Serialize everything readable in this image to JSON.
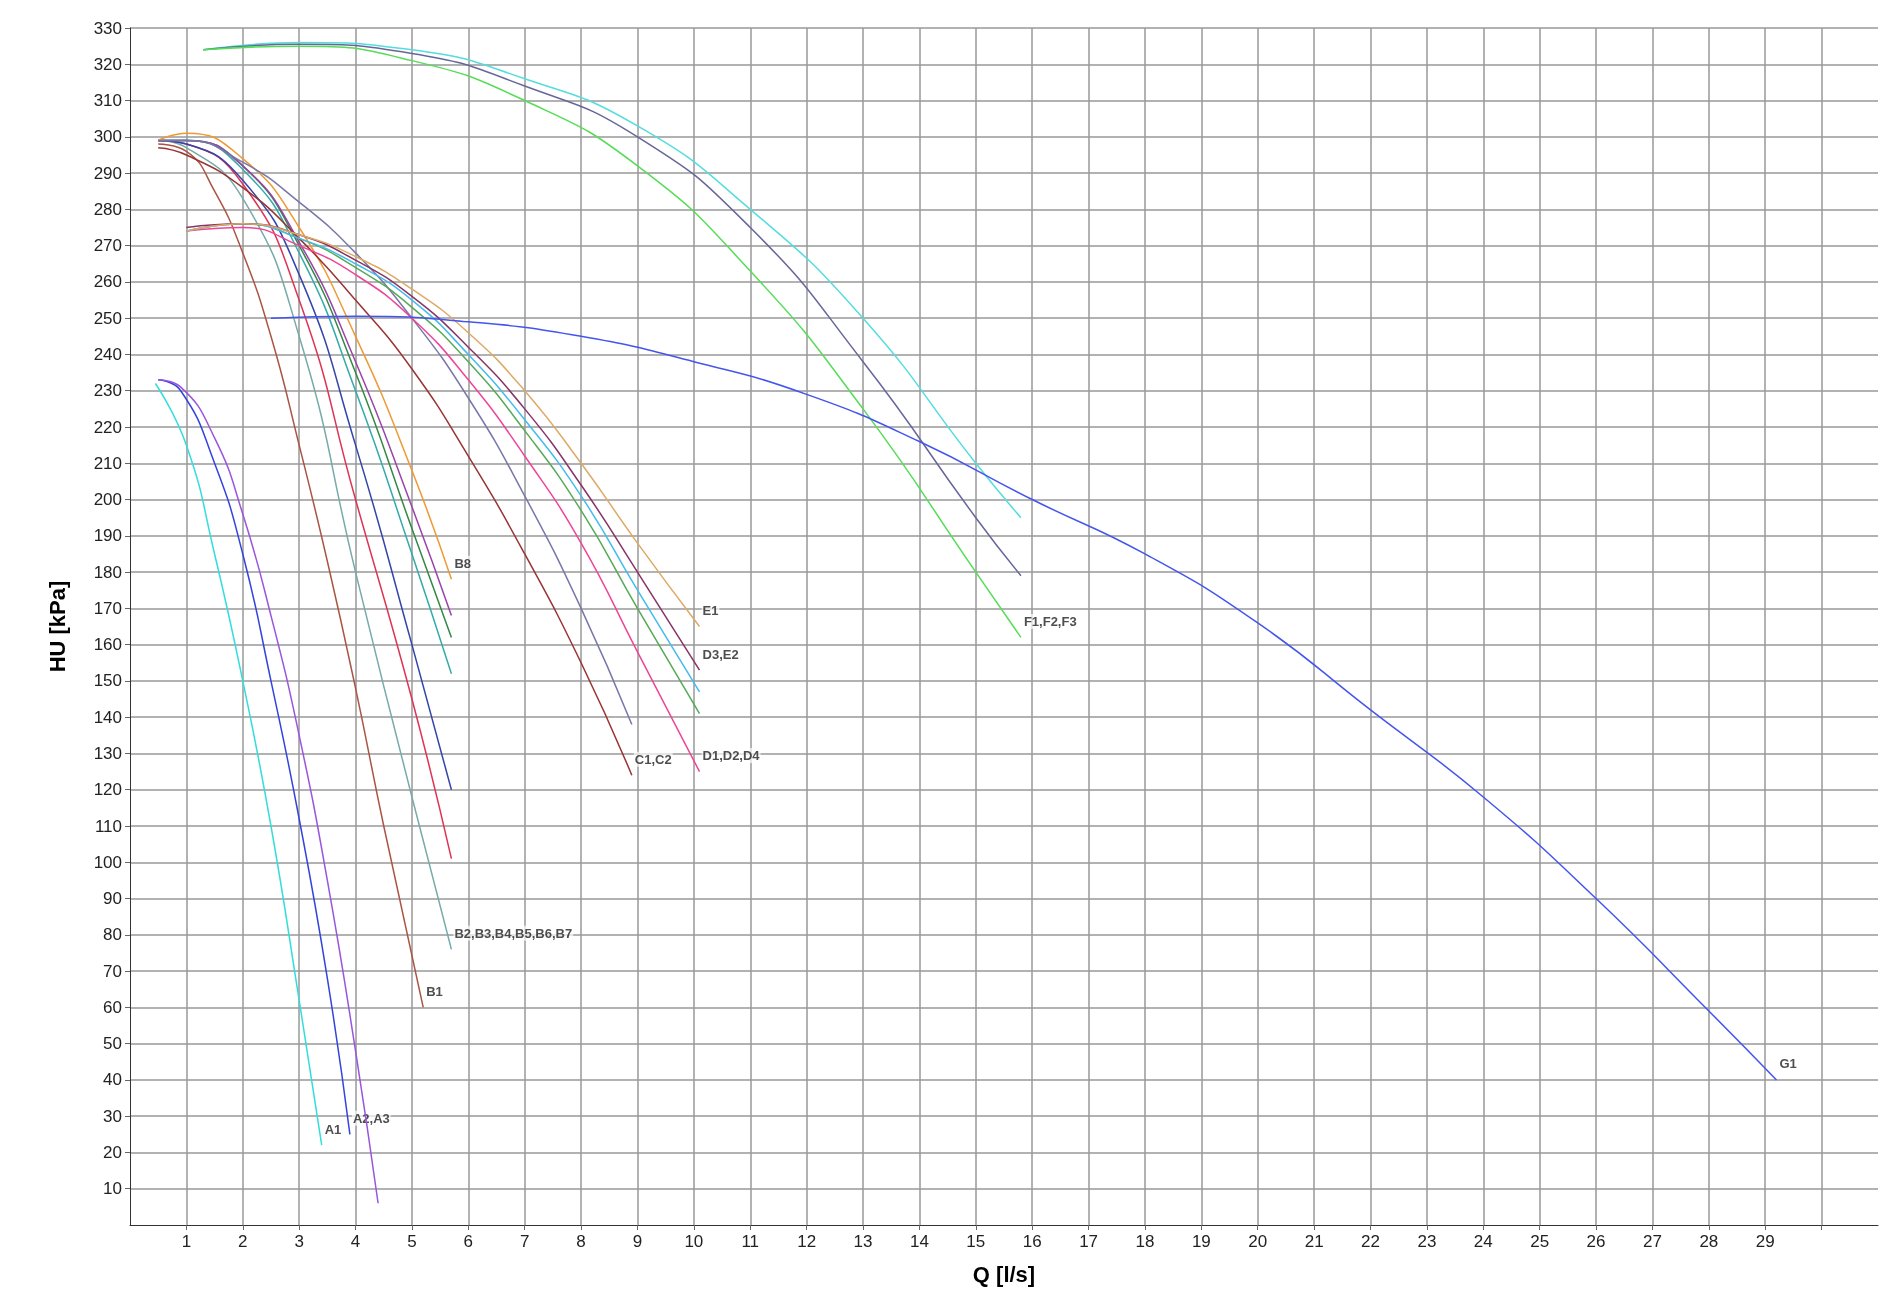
{
  "chart_data": {
    "type": "line",
    "xlabel": "Q [l/s]",
    "ylabel": "HU [kPa]",
    "xlim": [
      0,
      31
    ],
    "ylim": [
      0,
      330
    ],
    "xticks": [
      1,
      2,
      3,
      4,
      5,
      6,
      7,
      8,
      9,
      10,
      11,
      12,
      13,
      14,
      15,
      16,
      17,
      18,
      19,
      20,
      21,
      22,
      23,
      24,
      25,
      26,
      27,
      28,
      29,
      {
        "value": 30,
        "label": null
      }
    ],
    "yticks": [
      10,
      20,
      30,
      40,
      50,
      60,
      70,
      80,
      90,
      100,
      110,
      120,
      130,
      140,
      150,
      160,
      170,
      180,
      190,
      200,
      210,
      220,
      230,
      240,
      250,
      260,
      270,
      280,
      290,
      300,
      310,
      320,
      330
    ],
    "grid": true,
    "series": [
      {
        "color": "#33dddd",
        "x": [
          0.45,
          1,
          1.5,
          2,
          2.5,
          3,
          3.4
        ],
        "values": [
          232,
          215,
          185,
          150,
          110,
          62,
          22
        ]
      },
      {
        "color": "#3344dd",
        "x": [
          0.5,
          0.9,
          1.5,
          2,
          2.5,
          3,
          3.5,
          3.9
        ],
        "values": [
          233,
          230,
          210,
          185,
          150,
          112,
          68,
          25
        ]
      },
      {
        "color": "#9955dd",
        "x": [
          0.5,
          0.9,
          1.5,
          2,
          2.5,
          3,
          3.5,
          4,
          4.4
        ],
        "values": [
          233,
          231,
          217,
          196,
          168,
          135,
          95,
          48,
          6
        ]
      },
      {
        "color": "#aa5544",
        "x": [
          0.5,
          1,
          1.5,
          2,
          2.5,
          3,
          3.5,
          4,
          4.5,
          5.2
        ],
        "values": [
          298,
          296,
          285,
          268,
          245,
          215,
          183,
          148,
          110,
          60
        ]
      },
      {
        "color": "#77aaaa",
        "x": [
          0.5,
          1,
          2,
          3,
          4,
          5,
          5.7
        ],
        "values": [
          299,
          297,
          283,
          245,
          180,
          118,
          76
        ]
      },
      {
        "color": "#dd3355",
        "x": [
          0.5,
          1,
          2,
          3,
          4,
          5,
          5.7
        ],
        "values": [
          299,
          298,
          287,
          255,
          200,
          145,
          101
        ]
      },
      {
        "color": "#3344aa",
        "x": [
          0.5,
          1,
          2,
          3,
          4,
          5,
          5.7
        ],
        "values": [
          299,
          298,
          288,
          262,
          215,
          160,
          120
        ]
      },
      {
        "color": "#33aaaa",
        "x": [
          0.5,
          1,
          2,
          3,
          4,
          5,
          5.7
        ],
        "values": [
          299,
          299,
          291,
          268,
          230,
          185,
          152
        ]
      },
      {
        "color": "#338844",
        "x": [
          0.5,
          1,
          2,
          3,
          4,
          5,
          5.7
        ],
        "values": [
          299,
          299,
          292,
          270,
          235,
          192,
          162
        ]
      },
      {
        "color": "#9944aa",
        "x": [
          0.5,
          1,
          2,
          3,
          4,
          5,
          5.7
        ],
        "values": [
          299,
          299,
          292,
          271,
          238,
          198,
          168
        ]
      },
      {
        "color": "#ee9933",
        "x": [
          0.5,
          1,
          2,
          3,
          4,
          5,
          5.7
        ],
        "values": [
          299,
          301,
          294,
          275,
          245,
          208,
          178
        ]
      },
      {
        "color": "#993333",
        "x": [
          0.5,
          1,
          2,
          3,
          4,
          5,
          6,
          7,
          8,
          8.9
        ],
        "values": [
          297,
          295,
          286,
          272,
          255,
          236,
          212,
          185,
          155,
          124
        ]
      },
      {
        "color": "#7777aa",
        "x": [
          0.5,
          1,
          2,
          3,
          4,
          5,
          6,
          7,
          8,
          8.9
        ],
        "values": [
          299,
          299,
          293,
          282,
          268,
          250,
          228,
          201,
          170,
          138
        ]
      },
      {
        "color": "#ee4499",
        "x": [
          1,
          2,
          3,
          4,
          5,
          6,
          7,
          8,
          9,
          10.1
        ],
        "values": [
          274,
          275,
          270,
          262,
          250,
          233,
          212,
          188,
          158,
          125
        ]
      },
      {
        "color": "#55aa55",
        "x": [
          1,
          2,
          3,
          4,
          5,
          6,
          7,
          8,
          9,
          10.1
        ],
        "values": [
          274,
          276,
          272,
          264,
          253,
          238,
          219,
          197,
          170,
          141
        ]
      },
      {
        "color": "#44bbee",
        "x": [
          1,
          2,
          3,
          4,
          5,
          6,
          7,
          8,
          9,
          10.1
        ],
        "values": [
          274,
          276,
          272,
          265,
          255,
          240,
          222,
          201,
          175,
          147
        ]
      },
      {
        "color": "#883366",
        "x": [
          1,
          2,
          3,
          4,
          5,
          6,
          7,
          8,
          9,
          10.1
        ],
        "values": [
          275,
          276,
          273,
          266,
          256,
          242,
          225,
          204,
          180,
          153
        ]
      },
      {
        "color": "#ddaa66",
        "x": [
          1,
          2,
          3,
          4,
          5,
          6,
          7,
          8,
          9,
          10.1
        ],
        "values": [
          274,
          276,
          273,
          267,
          258,
          246,
          230,
          210,
          188,
          165
        ]
      },
      {
        "color": "#55dddd",
        "x": [
          1.3,
          3,
          5,
          7,
          9,
          11,
          13,
          15,
          15.8
        ],
        "values": [
          324,
          326,
          324,
          316,
          303,
          280,
          250,
          210,
          195
        ]
      },
      {
        "color": "#666699",
        "x": [
          1.3,
          3,
          5,
          7,
          9,
          11,
          13,
          15,
          15.8
        ],
        "values": [
          324,
          325.5,
          323,
          314,
          300,
          275,
          238,
          195,
          179
        ]
      },
      {
        "color": "#55dd55",
        "x": [
          1.3,
          3,
          5,
          7,
          9,
          11,
          13,
          15,
          15.8
        ],
        "values": [
          324,
          325,
          321,
          310,
          292,
          263,
          225,
          180,
          162
        ]
      },
      {
        "color": "#4455ee",
        "x": [
          2.5,
          4,
          6,
          8,
          10,
          12,
          14,
          16,
          18,
          20,
          22,
          24,
          26,
          28,
          29.2
        ],
        "values": [
          250,
          250.5,
          249,
          245,
          238,
          229,
          216,
          200,
          185,
          166,
          142,
          118,
          90,
          59,
          40
        ]
      }
    ],
    "annotations": [
      {
        "text": "A1",
        "x": 3.4,
        "y": 22
      },
      {
        "text": "A2,A3",
        "x": 3.9,
        "y": 25
      },
      {
        "text": "B1",
        "x": 5.2,
        "y": 60
      },
      {
        "text": "B2,B3,B4,B5,B6,B7",
        "x": 5.7,
        "y": 76
      },
      {
        "text": "B8",
        "x": 5.7,
        "y": 178
      },
      {
        "text": "C1,C2",
        "x": 8.9,
        "y": 124
      },
      {
        "text": "D1,D2,D4",
        "x": 10.1,
        "y": 125
      },
      {
        "text": "E1",
        "x": 10.1,
        "y": 165
      },
      {
        "text": "D3,E2",
        "x": 10.1,
        "y": 153
      },
      {
        "text": "F1,F2,F3",
        "x": 15.8,
        "y": 162
      },
      {
        "text": "G1",
        "x": 29.2,
        "y": 40
      }
    ]
  }
}
